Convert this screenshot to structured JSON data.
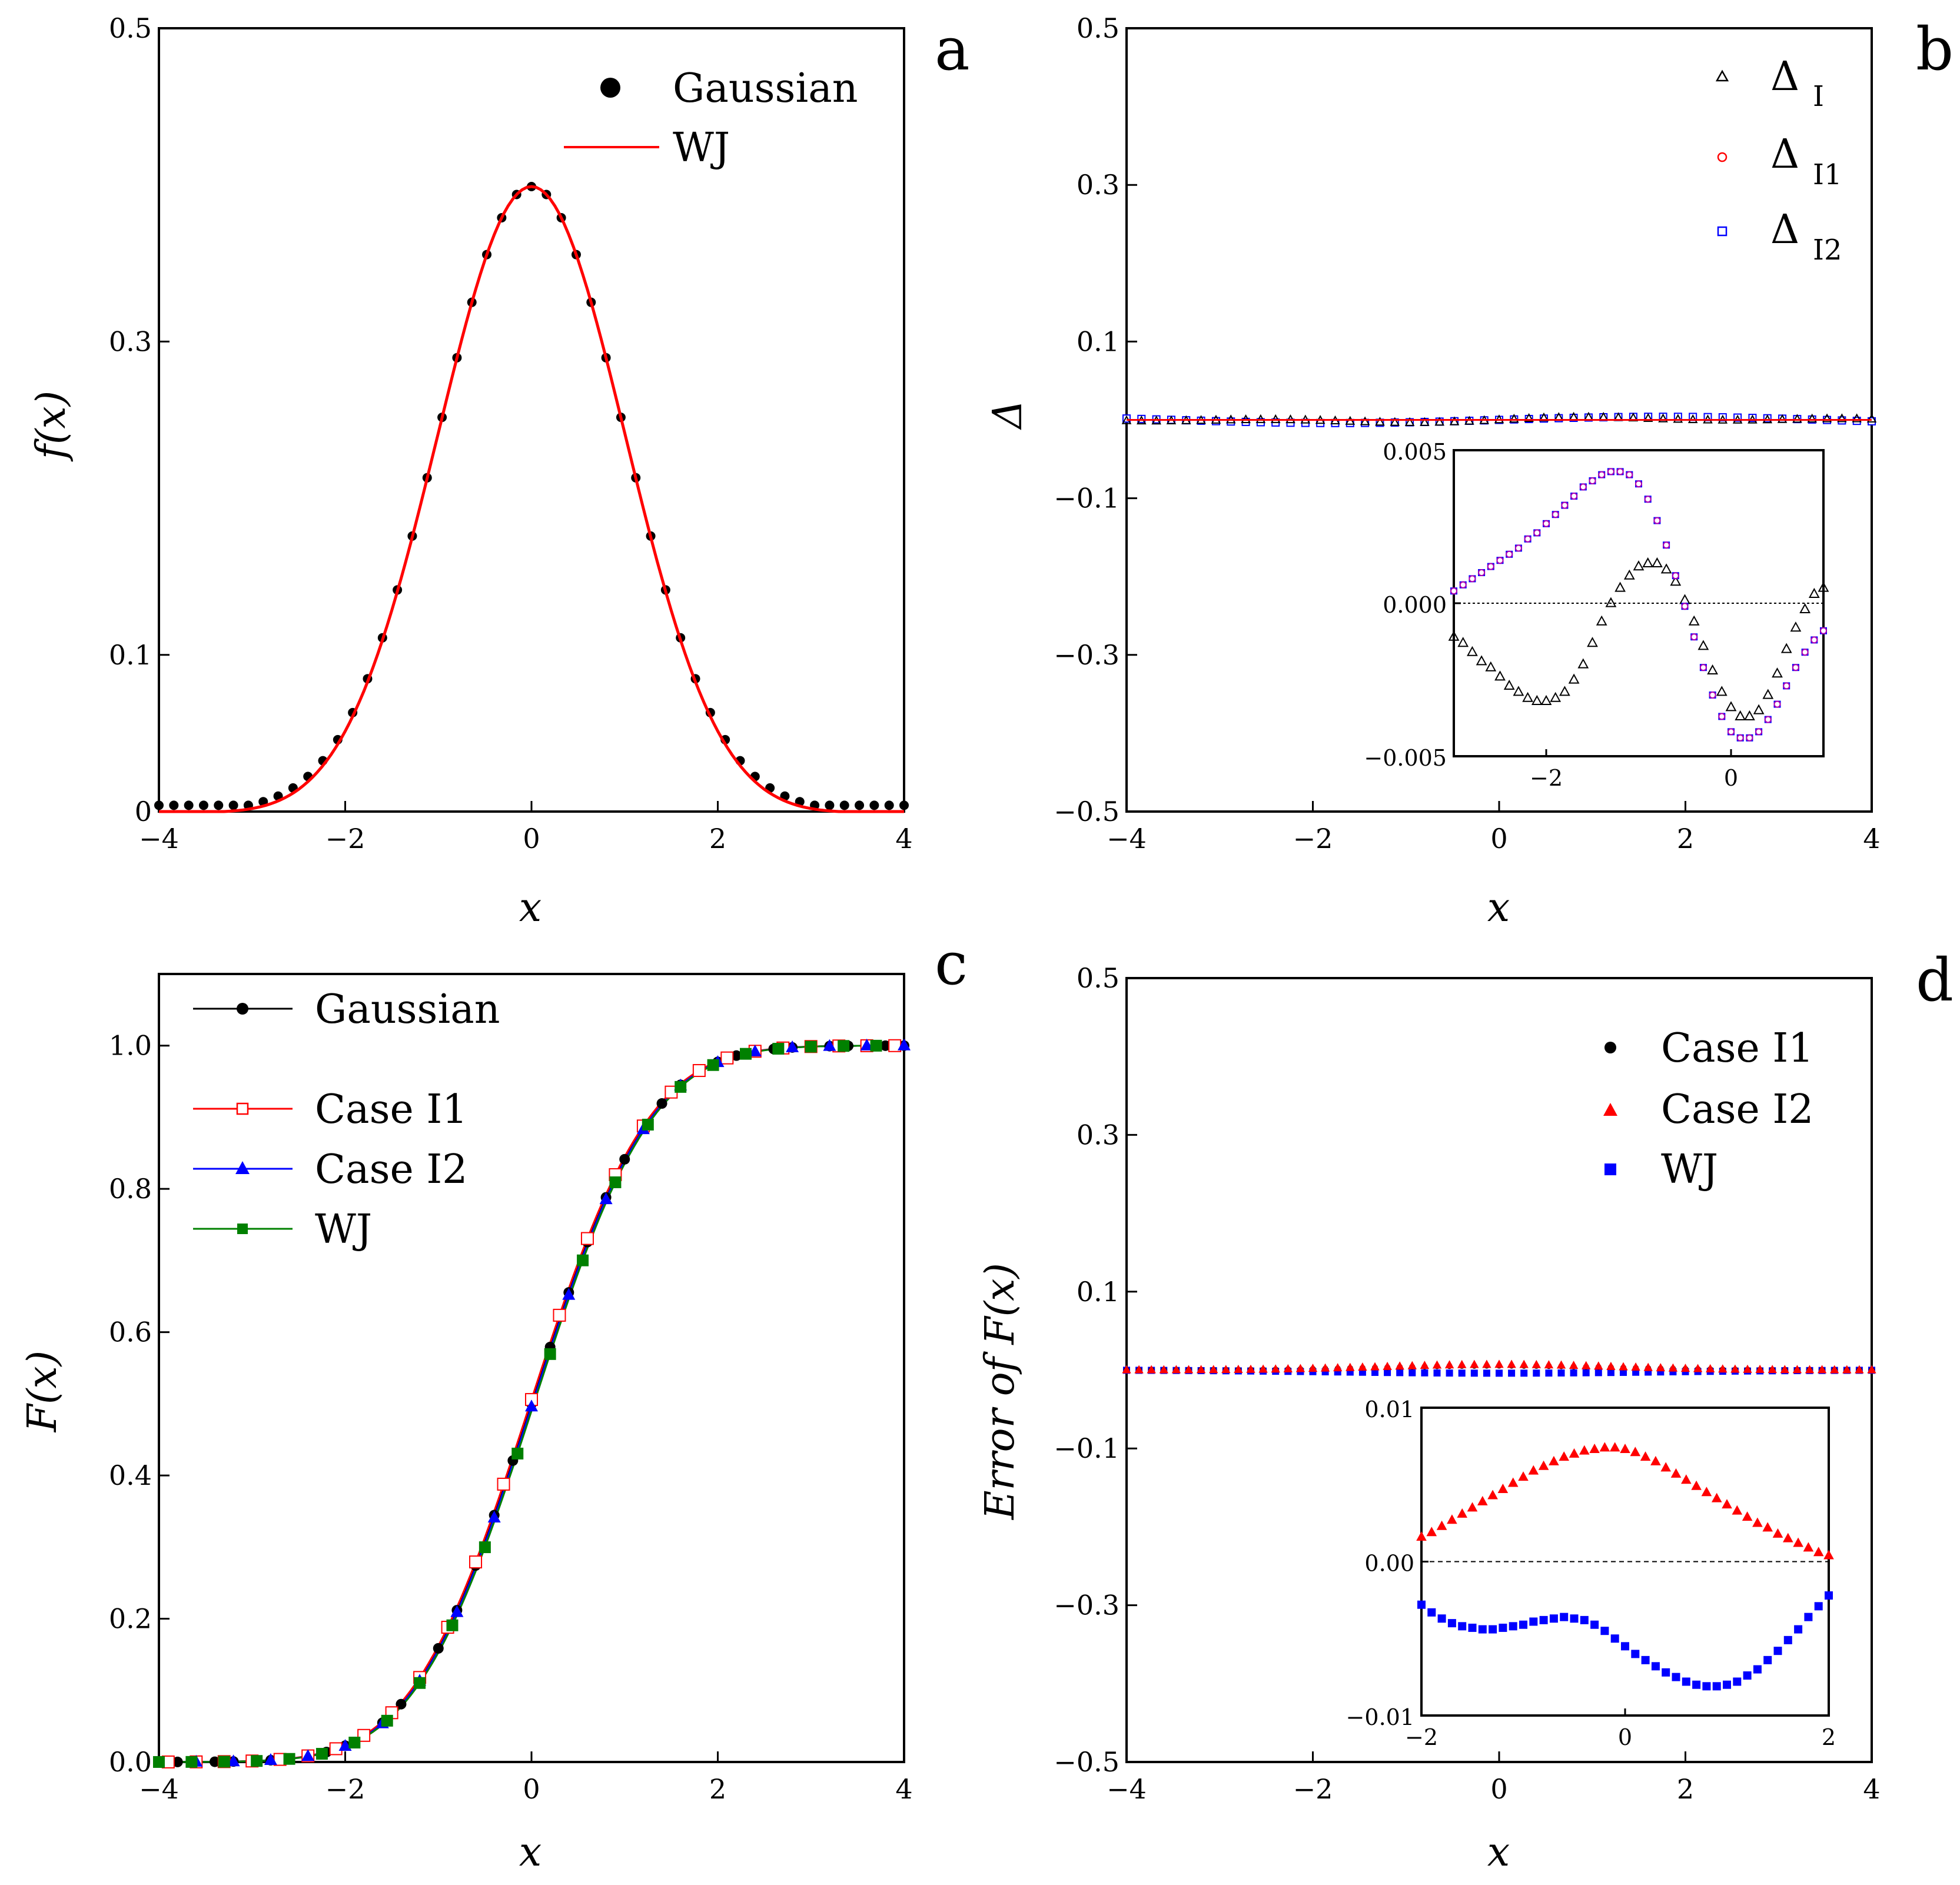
{
  "figure": {
    "panels": [
      "a",
      "b",
      "c",
      "d"
    ]
  },
  "chart_data": [
    {
      "panel": "a",
      "type": "scatter",
      "title": "",
      "xlabel": "x",
      "ylabel": "f(x)",
      "xlim": [
        -4,
        4
      ],
      "ylim": [
        0,
        0.5
      ],
      "xticks": [
        "−4",
        "−2",
        "0",
        "2",
        "4"
      ],
      "yticks": [
        "0",
        "0.1",
        "0.3",
        "0.5"
      ],
      "ytick_values": [
        0,
        0.1,
        0.3,
        0.5
      ],
      "legend_position": "top-right",
      "series": [
        {
          "name": "Gaussian",
          "kind": "markers",
          "marker": "filled-circle",
          "color": "#000000",
          "x_start": -4,
          "x_step": 0.16,
          "count": 51,
          "sigma": 1.0
        },
        {
          "name": "WJ",
          "kind": "line",
          "color": "#ff0000",
          "x_start": -4,
          "x_step": 0.05,
          "count": 161,
          "sigma": 1.0,
          "support": 3.3
        }
      ]
    },
    {
      "panel": "b",
      "type": "scatter",
      "xlabel": "x",
      "ylabel": "Δ",
      "xlim": [
        -4,
        4
      ],
      "ylim": [
        -0.5,
        0.5
      ],
      "xticks": [
        "−4",
        "−2",
        "0",
        "2",
        "4"
      ],
      "yticks": [
        "−0.5",
        "−0.3",
        "−0.1",
        "0.1",
        "0.3",
        "0.5"
      ],
      "ytick_values": [
        -0.5,
        -0.3,
        -0.1,
        0.1,
        0.3,
        0.5
      ],
      "legend_position": "top-right",
      "series": [
        {
          "name": "Δ",
          "sub": "I",
          "marker": "open-triangle",
          "color": "#000000"
        },
        {
          "name": "Δ",
          "sub": "I1",
          "marker": "open-circle",
          "color": "#ff0000"
        },
        {
          "name": "Δ",
          "sub": "I2",
          "marker": "open-square",
          "color": "#0000ff"
        }
      ],
      "main_values_near": 0.0,
      "inset": {
        "xlim": [
          -3,
          1
        ],
        "ylim": [
          -0.005,
          0.005
        ],
        "xticks": [
          "−2",
          "0"
        ],
        "xtick_values": [
          -2,
          0
        ],
        "yticks": [
          "−0.005",
          "0.000",
          "0.005"
        ],
        "ytick_values": [
          -0.005,
          0,
          0.005
        ],
        "zero_line": true,
        "triangle_x": [
          -3.0,
          -2.9,
          -2.8,
          -2.7,
          -2.6,
          -2.5,
          -2.4,
          -2.3,
          -2.2,
          -2.1,
          -2.0,
          -1.9,
          -1.8,
          -1.7,
          -1.6,
          -1.5,
          -1.4,
          -1.3,
          -1.2,
          -1.1,
          -1.0,
          -0.9,
          -0.8,
          -0.7,
          -0.6,
          -0.5,
          -0.4,
          -0.3,
          -0.2,
          -0.1,
          0.0,
          0.1,
          0.2,
          0.3,
          0.4,
          0.5,
          0.6,
          0.7,
          0.8,
          0.9,
          1.0
        ],
        "triangle_y": [
          -0.0011,
          -0.0013,
          -0.0016,
          -0.0019,
          -0.0021,
          -0.0024,
          -0.0027,
          -0.0029,
          -0.0031,
          -0.0032,
          -0.0032,
          -0.0031,
          -0.0029,
          -0.0025,
          -0.002,
          -0.0013,
          -0.0006,
          0.0,
          0.0005,
          0.0009,
          0.0012,
          0.0013,
          0.0013,
          0.0011,
          0.0007,
          0.0001,
          -0.0006,
          -0.0014,
          -0.0022,
          -0.0029,
          -0.0034,
          -0.0037,
          -0.0037,
          -0.0035,
          -0.003,
          -0.0023,
          -0.0015,
          -0.0008,
          -0.0002,
          0.0003,
          0.0005
        ],
        "circle_x": [
          -3.0,
          -2.9,
          -2.8,
          -2.7,
          -2.6,
          -2.5,
          -2.4,
          -2.3,
          -2.2,
          -2.1,
          -2.0,
          -1.9,
          -1.8,
          -1.7,
          -1.6,
          -1.5,
          -1.4,
          -1.3,
          -1.2,
          -1.1,
          -1.0,
          -0.9,
          -0.8,
          -0.7,
          -0.6,
          -0.5,
          -0.4,
          -0.3,
          -0.2,
          -0.1,
          0.0,
          0.1,
          0.2,
          0.3,
          0.4,
          0.5,
          0.6,
          0.7,
          0.8,
          0.9,
          1.0
        ],
        "circle_y": [
          0.0004,
          0.0006,
          0.0008,
          0.001,
          0.0012,
          0.0014,
          0.0016,
          0.0018,
          0.0021,
          0.0023,
          0.0026,
          0.0029,
          0.0032,
          0.0035,
          0.0038,
          0.004,
          0.0042,
          0.0043,
          0.0043,
          0.0042,
          0.0039,
          0.0034,
          0.0027,
          0.0019,
          0.0009,
          -0.0001,
          -0.0011,
          -0.0021,
          -0.003,
          -0.0037,
          -0.0042,
          -0.0044,
          -0.0044,
          -0.0042,
          -0.0038,
          -0.0033,
          -0.0027,
          -0.0021,
          -0.0016,
          -0.0012,
          -0.0009
        ]
      }
    },
    {
      "panel": "c",
      "type": "line",
      "xlabel": "x",
      "ylabel": "F(x)",
      "xlim": [
        -4,
        4
      ],
      "ylim": [
        0,
        1.1
      ],
      "xticks": [
        "−4",
        "−2",
        "0",
        "2",
        "4"
      ],
      "yticks": [
        "0.0",
        "0.2",
        "0.4",
        "0.6",
        "0.8",
        "1.0"
      ],
      "ytick_values": [
        0,
        0.2,
        0.4,
        0.6,
        0.8,
        1.0
      ],
      "legend_position": "top-left",
      "series": [
        {
          "name": "Gaussian",
          "marker": "filled-circle",
          "color": "#000000",
          "x_start": -4,
          "x_step": 0.2,
          "count": 41
        },
        {
          "name": "Case I1",
          "marker": "open-square",
          "color": "#ff0000",
          "x_start": -3.9,
          "x_step": 0.3,
          "count": 27
        },
        {
          "name": "Case I2",
          "marker": "filled-triangle",
          "color": "#0000ff",
          "x_start": -3.6,
          "x_step": 0.4,
          "count": 20
        },
        {
          "name": "WJ",
          "marker": "filled-square",
          "color": "#008000",
          "x_start": -4,
          "x_step": 0.35,
          "count": 23
        }
      ]
    },
    {
      "panel": "d",
      "type": "scatter",
      "xlabel": "x",
      "ylabel": "Error of F(x)",
      "xlim": [
        -4,
        4
      ],
      "ylim": [
        -0.5,
        0.5
      ],
      "xticks": [
        "−4",
        "−2",
        "0",
        "2",
        "4"
      ],
      "yticks": [
        "−0.5",
        "−0.3",
        "−0.1",
        "0.1",
        "0.3",
        "0.5"
      ],
      "ytick_values": [
        -0.5,
        -0.3,
        -0.1,
        0.1,
        0.3,
        0.5
      ],
      "legend_position": "top-right",
      "series": [
        {
          "name": "Case I1",
          "marker": "filled-circle",
          "color": "#000000"
        },
        {
          "name": "Case I2",
          "marker": "filled-triangle",
          "color": "#ff0000"
        },
        {
          "name": "WJ",
          "marker": "filled-square",
          "color": "#0000ff"
        }
      ],
      "main_values_near": 0.0,
      "inset": {
        "xlim": [
          -2,
          2
        ],
        "ylim": [
          -0.01,
          0.01
        ],
        "xticks": [
          "−2",
          "0",
          "2"
        ],
        "xtick_values": [
          -2,
          0,
          2
        ],
        "yticks": [
          "−0.01",
          "0.00",
          "0.01"
        ],
        "ytick_values": [
          -0.01,
          0,
          0.01
        ],
        "zero_line": true,
        "triangle_x": [
          -2.0,
          -1.9,
          -1.8,
          -1.7,
          -1.6,
          -1.5,
          -1.4,
          -1.3,
          -1.2,
          -1.1,
          -1.0,
          -0.9,
          -0.8,
          -0.7,
          -0.6,
          -0.5,
          -0.4,
          -0.3,
          -0.2,
          -0.1,
          0.0,
          0.1,
          0.2,
          0.3,
          0.4,
          0.5,
          0.6,
          0.7,
          0.8,
          0.9,
          1.0,
          1.1,
          1.2,
          1.3,
          1.4,
          1.5,
          1.6,
          1.7,
          1.8,
          1.9,
          2.0
        ],
        "triangle_y": [
          0.0016,
          0.0019,
          0.0023,
          0.0027,
          0.0031,
          0.0035,
          0.0039,
          0.0043,
          0.0047,
          0.0051,
          0.0055,
          0.0059,
          0.0062,
          0.0065,
          0.0068,
          0.007,
          0.0072,
          0.0073,
          0.0074,
          0.0074,
          0.0073,
          0.0071,
          0.0068,
          0.0065,
          0.0061,
          0.0057,
          0.0053,
          0.0049,
          0.0045,
          0.0041,
          0.0037,
          0.0033,
          0.0029,
          0.0025,
          0.0022,
          0.0018,
          0.0015,
          0.0012,
          0.0009,
          0.0006,
          0.0004
        ],
        "square_x": [
          -2.0,
          -1.9,
          -1.8,
          -1.7,
          -1.6,
          -1.5,
          -1.4,
          -1.3,
          -1.2,
          -1.1,
          -1.0,
          -0.9,
          -0.8,
          -0.7,
          -0.6,
          -0.5,
          -0.4,
          -0.3,
          -0.2,
          -0.1,
          0.0,
          0.1,
          0.2,
          0.3,
          0.4,
          0.5,
          0.6,
          0.7,
          0.8,
          0.9,
          1.0,
          1.1,
          1.2,
          1.3,
          1.4,
          1.5,
          1.6,
          1.7,
          1.8,
          1.9,
          2.0
        ],
        "square_y": [
          -0.0028,
          -0.0033,
          -0.0037,
          -0.004,
          -0.0042,
          -0.0043,
          -0.0044,
          -0.0044,
          -0.0043,
          -0.0042,
          -0.0041,
          -0.0039,
          -0.0038,
          -0.0037,
          -0.0036,
          -0.0037,
          -0.0038,
          -0.0041,
          -0.0045,
          -0.005,
          -0.0055,
          -0.006,
          -0.0064,
          -0.0068,
          -0.0072,
          -0.0075,
          -0.0078,
          -0.008,
          -0.0081,
          -0.0081,
          -0.008,
          -0.0078,
          -0.0074,
          -0.007,
          -0.0064,
          -0.0058,
          -0.0051,
          -0.0044,
          -0.0036,
          -0.0029,
          -0.0022
        ]
      }
    }
  ]
}
